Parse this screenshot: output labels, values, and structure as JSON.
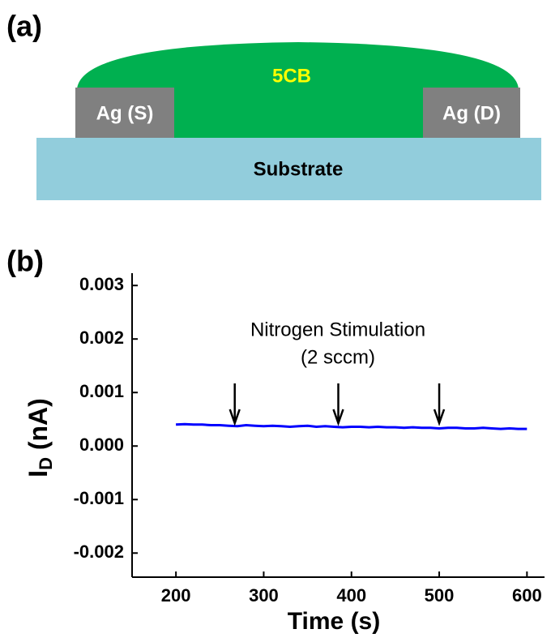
{
  "panel_a": {
    "label": "(a)",
    "drop": "5CB",
    "source": "Ag (S)",
    "drain": "Ag (D)",
    "substrate": "Substrate"
  },
  "chart_data": {
    "type": "line",
    "panel_label": "(b)",
    "x_label": "Time (s)",
    "y_label": {
      "symbol": "I",
      "subscript": "D",
      "unit": " (nA)"
    },
    "annotation": [
      "Nitrogen Stimulation",
      "(2 sccm)"
    ],
    "stimulation_times": [
      267,
      385,
      500
    ],
    "x": [
      200,
      210,
      220,
      230,
      240,
      250,
      260,
      270,
      280,
      290,
      300,
      310,
      320,
      330,
      340,
      350,
      360,
      370,
      380,
      390,
      400,
      410,
      420,
      430,
      440,
      450,
      460,
      470,
      480,
      490,
      500,
      510,
      520,
      530,
      540,
      550,
      560,
      570,
      580,
      590,
      600
    ],
    "series": [
      {
        "color": "#0000ff",
        "values": [
          0.0004,
          0.00041,
          0.0004,
          0.0004,
          0.00039,
          0.00039,
          0.00038,
          0.00037,
          0.00039,
          0.00038,
          0.00037,
          0.00038,
          0.00037,
          0.00036,
          0.00037,
          0.00038,
          0.00036,
          0.00037,
          0.00036,
          0.00035,
          0.00036,
          0.00036,
          0.00035,
          0.00036,
          0.00035,
          0.00035,
          0.00034,
          0.00035,
          0.00034,
          0.00034,
          0.00033,
          0.00034,
          0.00034,
          0.00033,
          0.00033,
          0.00034,
          0.00033,
          0.00032,
          0.00033,
          0.00032,
          0.00032
        ]
      }
    ],
    "xlim": [
      150,
      620
    ],
    "xticks": [
      200,
      300,
      400,
      500,
      600
    ],
    "ylim": [
      -0.00245,
      0.00323
    ],
    "yticks": [
      -0.002,
      -0.001,
      {
        "value": 0,
        "label": "0.000"
      },
      0.001,
      0.002,
      0.003
    ]
  }
}
